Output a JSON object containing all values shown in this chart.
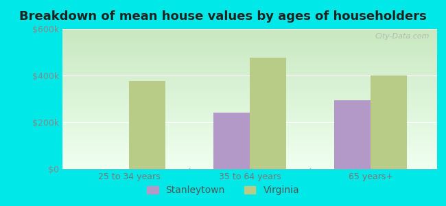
{
  "title": "Breakdown of mean house values by ages of householders",
  "categories": [
    "25 to 34 years",
    "35 to 64 years",
    "65 years+"
  ],
  "stanleytown": [
    0,
    240000,
    295000
  ],
  "virginia": [
    375000,
    475000,
    400000
  ],
  "stanleytown_color": "#b399c8",
  "virginia_color": "#b8cc88",
  "background_color": "#00e8e8",
  "plot_bg_gradient_top": "#c8e8c0",
  "plot_bg_gradient_bottom": "#f0fff0",
  "ylim": [
    0,
    600000
  ],
  "yticks": [
    0,
    200000,
    400000,
    600000
  ],
  "ytick_labels": [
    "$0",
    "$200k",
    "$400k",
    "$600k"
  ],
  "bar_width": 0.3,
  "legend_labels": [
    "Stanleytown",
    "Virginia"
  ],
  "title_fontsize": 13,
  "axis_fontsize": 9,
  "legend_fontsize": 10,
  "watermark": "City-Data.com"
}
